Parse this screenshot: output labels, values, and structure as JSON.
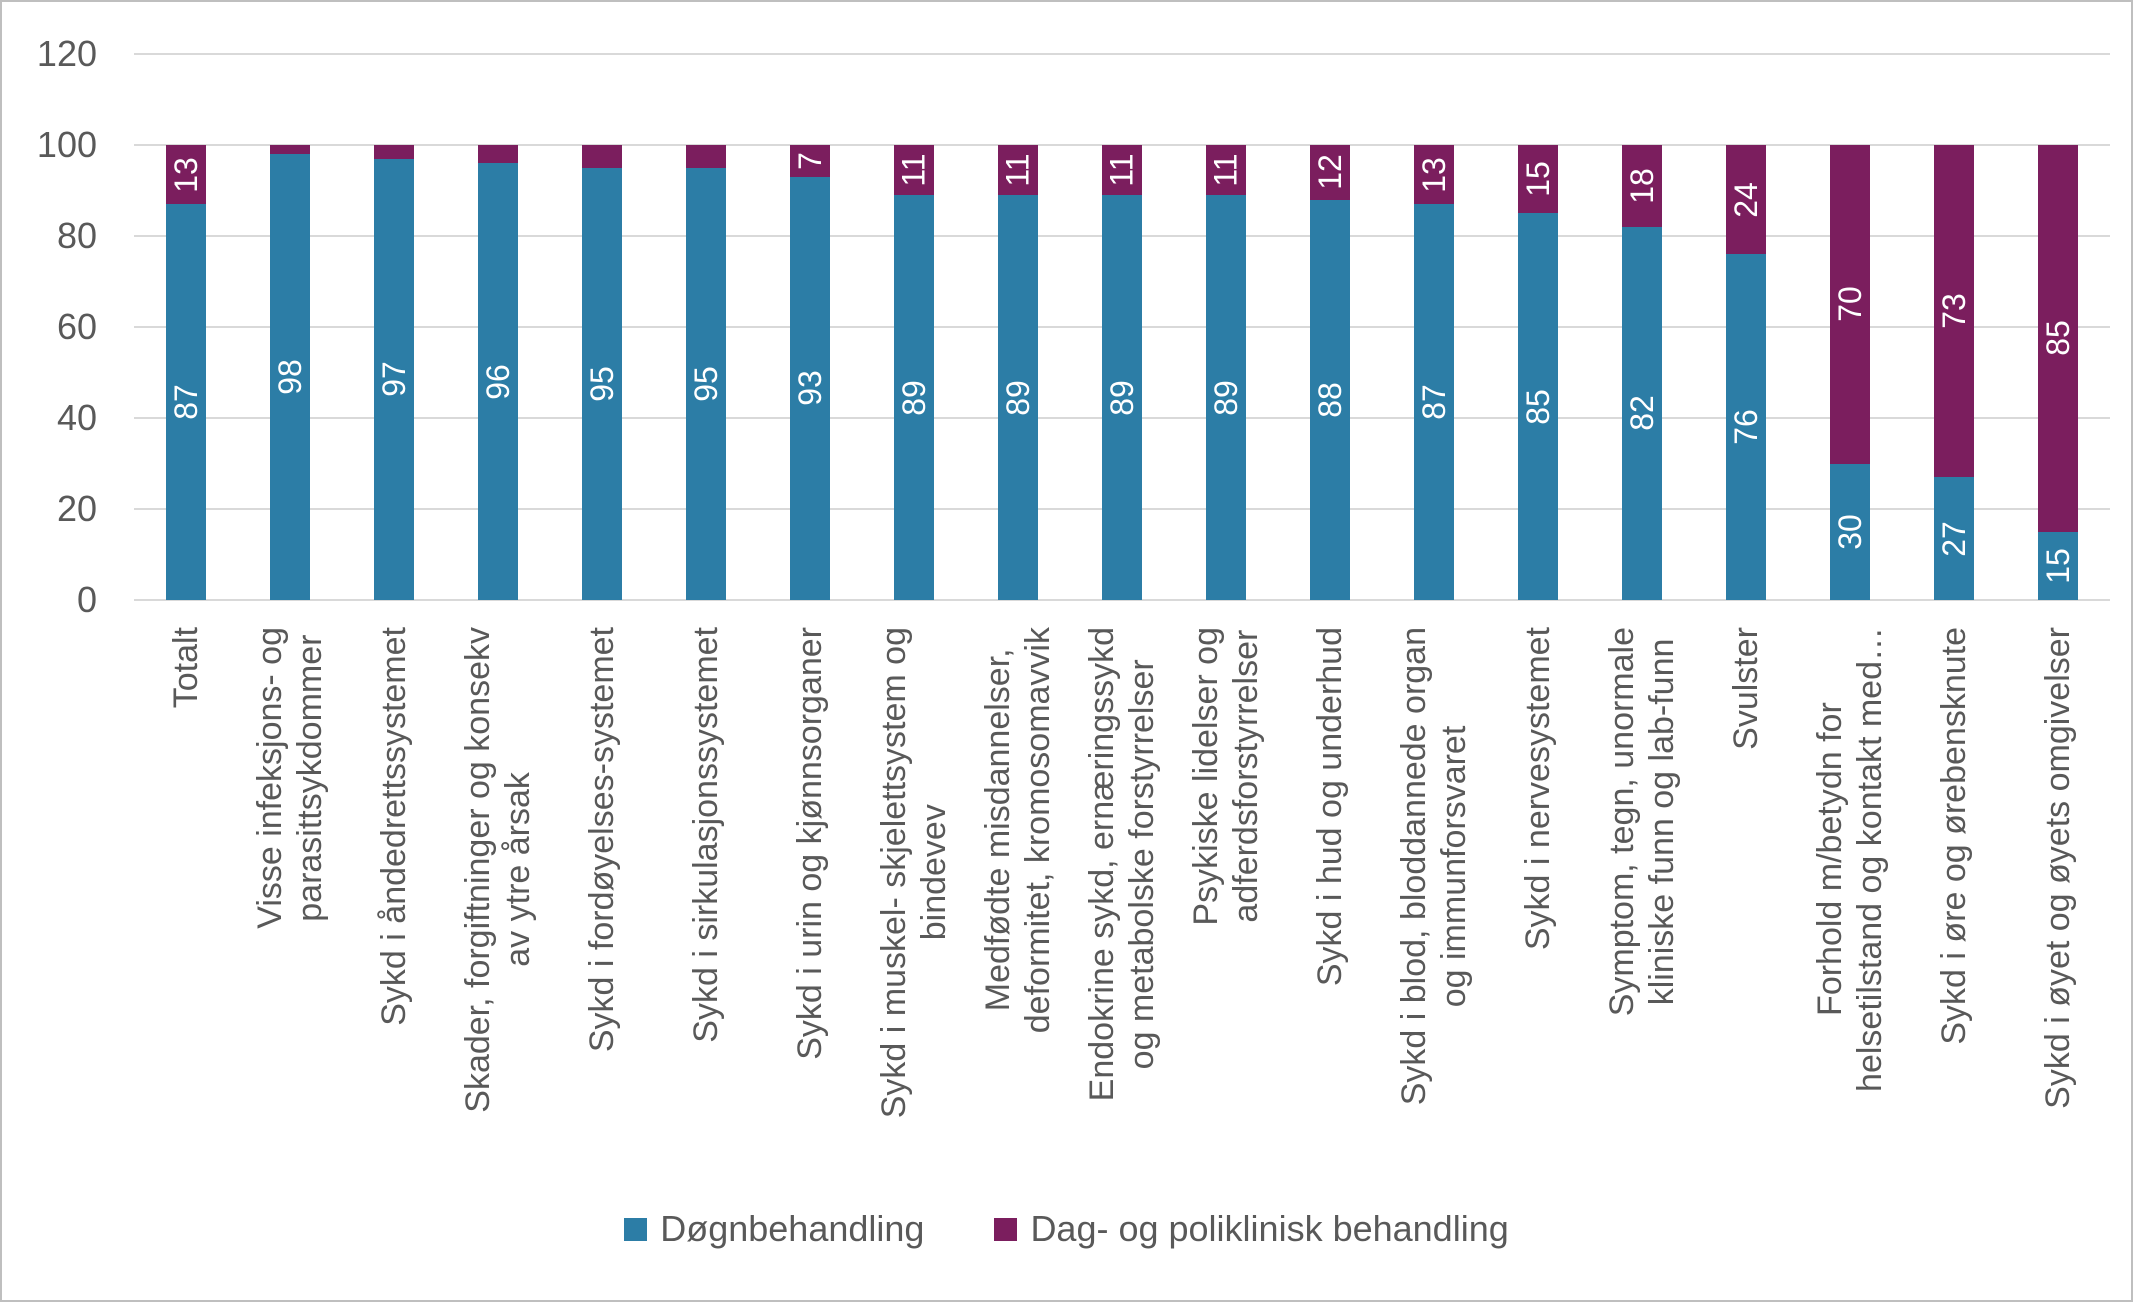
{
  "chart_data": {
    "type": "bar",
    "stacked": true,
    "percent_stacked": true,
    "title": "",
    "xlabel": "",
    "ylabel": "",
    "ylim": [
      0,
      120
    ],
    "yticks": [
      0,
      20,
      40,
      60,
      80,
      100,
      120
    ],
    "grid": true,
    "legend_position": "bottom",
    "categories": [
      "Totalt",
      "Visse infeksjons- og\nparasittsykdommer",
      "Sykd i åndedrettssystemet",
      "Skader, forgiftninger og konsekv\nav ytre årsak",
      "Sykd i fordøyelses-systemet",
      "Sykd i sirkulasjonssystemet",
      "Sykd i urin og kjønnsorganer",
      "Sykd i muskel- skjelettsystem og\nbindevev",
      "Medfødte misdannelser,\ndeformitet, kromosomavvik",
      "Endokrine sykd, ernæringssykd\nog metabolske forstyrrelser",
      "Psykiske lidelser og\nadferdsforstyrrelser",
      "Sykd i hud og underhud",
      "Sykd i blod, bloddannede organ\nog immunforsvaret",
      "Sykd i nervesystemet",
      "Symptom, tegn, unormale\nkliniske funn og lab-funn",
      "Svulster",
      "Forhold m/betydn for\nhelsetilstand og kontakt med…",
      "Sykd i øre og ørebensknute",
      "Sykd i øyet og øyets omgivelser"
    ],
    "series": [
      {
        "name": "Døgnbehandling",
        "color": "#2C7DA6",
        "values": [
          87,
          98,
          97,
          96,
          95,
          95,
          93,
          89,
          89,
          89,
          89,
          88,
          87,
          85,
          82,
          76,
          30,
          27,
          15
        ]
      },
      {
        "name": "Dag- og poliklinisk behandling",
        "color": "#7B1E5E",
        "values": [
          13,
          2,
          3,
          4,
          5,
          5,
          7,
          11,
          11,
          11,
          11,
          12,
          13,
          15,
          18,
          24,
          70,
          73,
          85
        ]
      }
    ],
    "value_labels": {
      "color": "#FFFFFF",
      "min_value_to_show": 7,
      "rotation_degrees": -90
    }
  },
  "colors": {
    "axis_text": "#595959",
    "gridline": "#D9D9D9",
    "background": "#FFFFFF",
    "frame_border": "#BFBFBF"
  }
}
